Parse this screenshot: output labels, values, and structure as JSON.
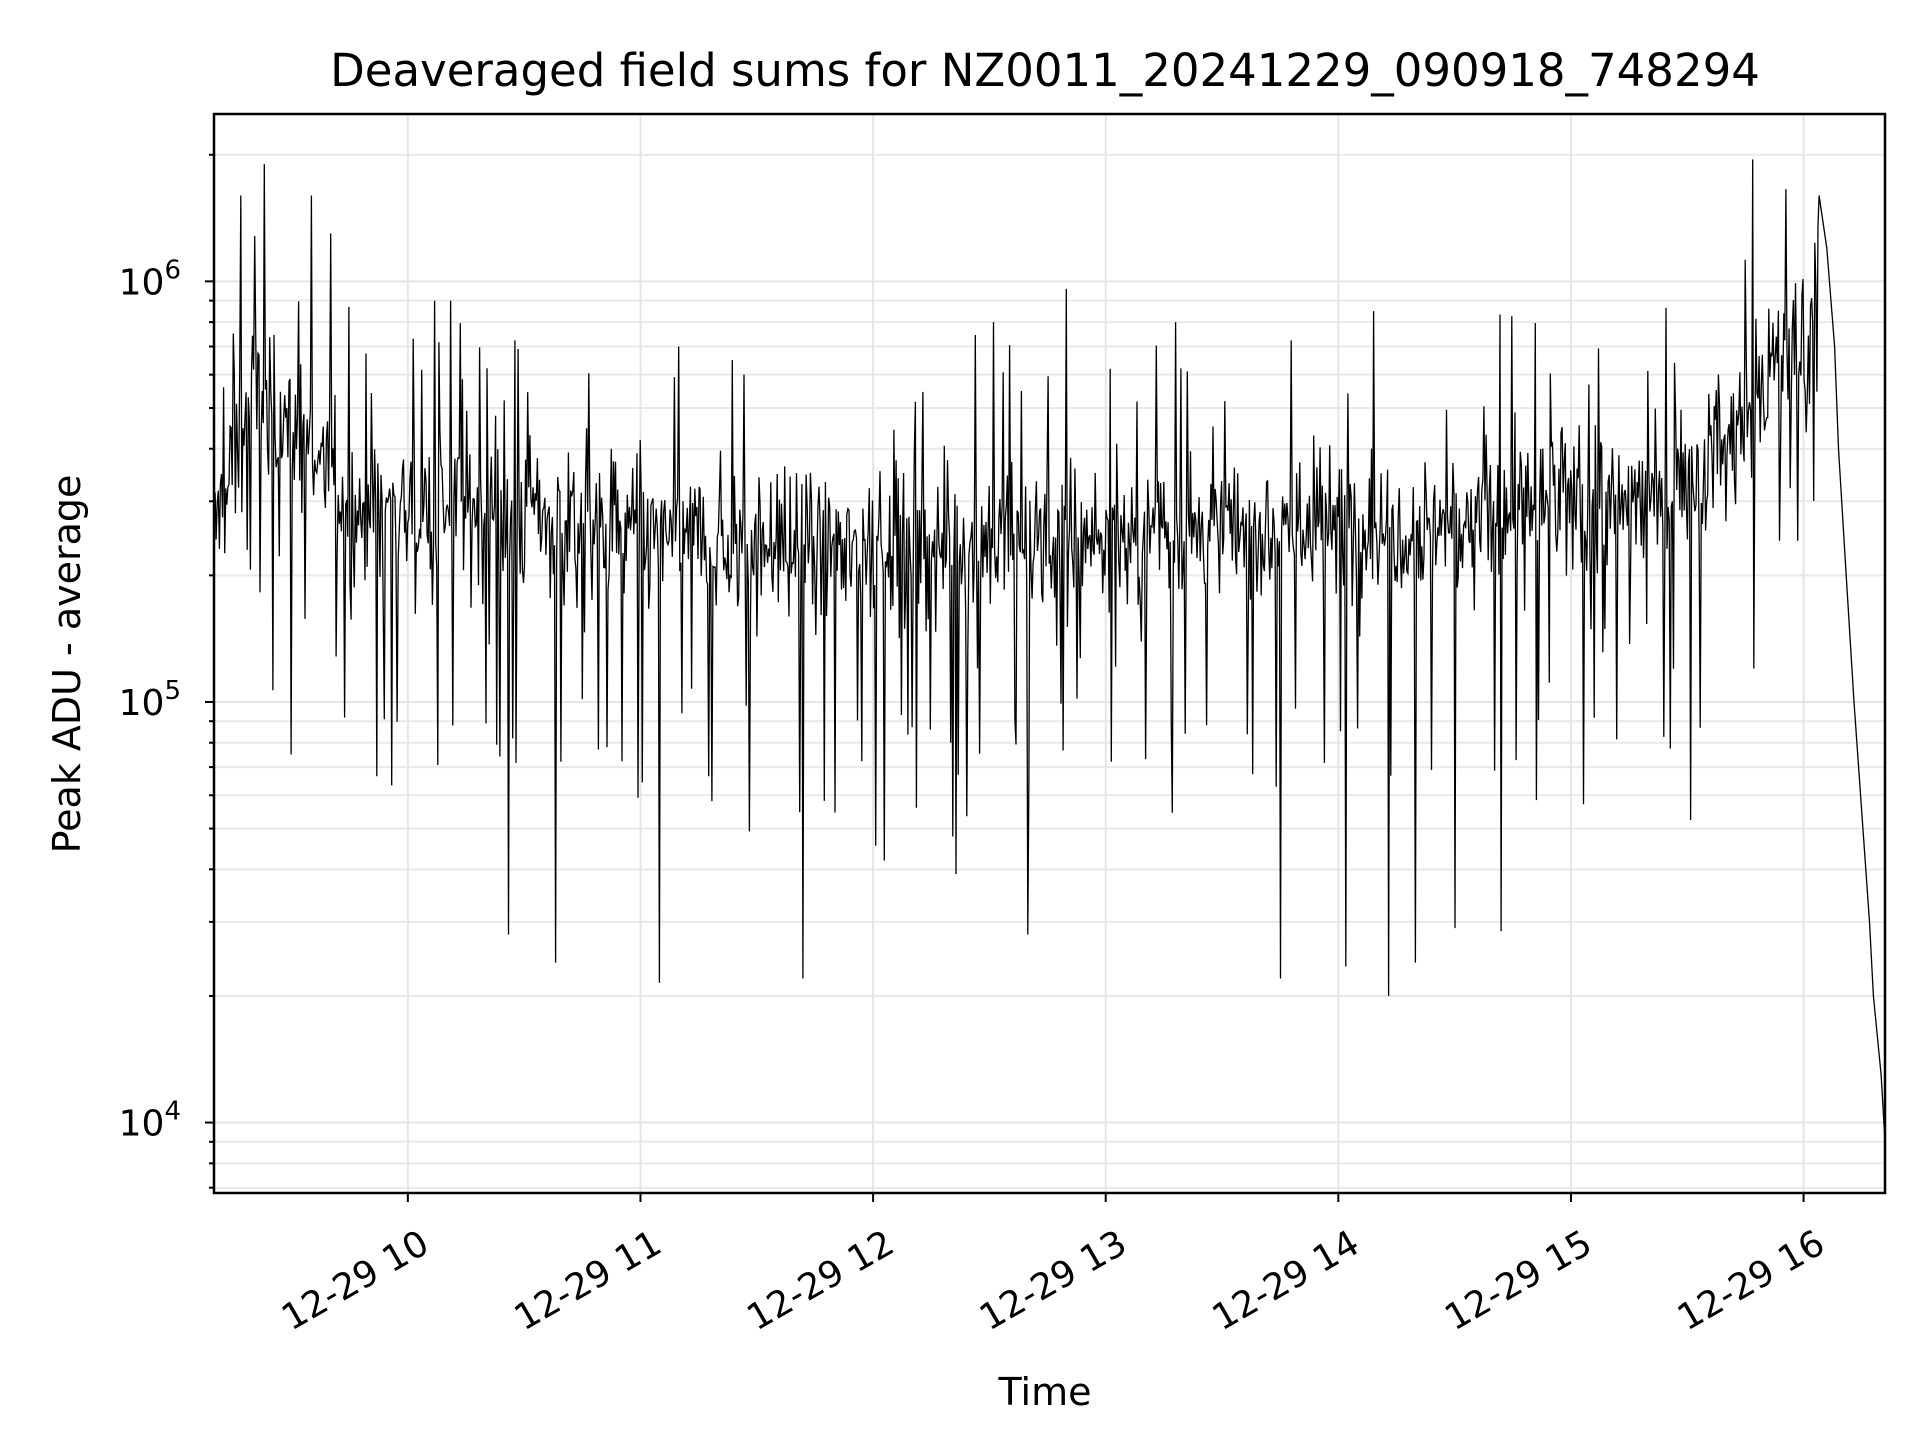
{
  "chart_data": {
    "type": "line",
    "title": "Deaveraged field sums for NZ0011_20241229_090918_748294",
    "xlabel": "Time",
    "ylabel": "Peak ADU - average",
    "yscale": "log",
    "ylim": [
      6800,
      2500000
    ],
    "xlim": [
      "12-29 09:10",
      "12-29 16:21"
    ],
    "grid": true,
    "minor_grid_y": true,
    "legend": "none",
    "line_color": "#000000",
    "x_ticks": [
      {
        "time": "12-29 10:00",
        "label": "12-29 10"
      },
      {
        "time": "12-29 11:00",
        "label": "12-29 11"
      },
      {
        "time": "12-29 12:00",
        "label": "12-29 12"
      },
      {
        "time": "12-29 13:00",
        "label": "12-29 13"
      },
      {
        "time": "12-29 14:00",
        "label": "12-29 14"
      },
      {
        "time": "12-29 15:00",
        "label": "12-29 15"
      },
      {
        "time": "12-29 16:00",
        "label": "12-29 16"
      }
    ],
    "y_ticks": [
      {
        "value": 10000,
        "base": "10",
        "exp": "4"
      },
      {
        "value": 100000,
        "base": "10",
        "exp": "5"
      },
      {
        "value": 1000000,
        "base": "10",
        "exp": "6"
      }
    ],
    "series": [
      {
        "noisy_segment": {
          "start": "12-29 09:10",
          "end": "12-29 16:04",
          "samples": 1500,
          "typical_value_curve": [
            {
              "time": "12-29 09:10",
              "value": 250000
            },
            {
              "time": "12-29 09:20",
              "value": 550000
            },
            {
              "time": "12-29 09:30",
              "value": 450000
            },
            {
              "time": "12-29 09:45",
              "value": 300000
            },
            {
              "time": "12-29 10:30",
              "value": 280000
            },
            {
              "time": "12-29 11:30",
              "value": 230000
            },
            {
              "time": "12-29 12:30",
              "value": 240000
            },
            {
              "time": "12-29 13:30",
              "value": 260000
            },
            {
              "time": "12-29 14:30",
              "value": 270000
            },
            {
              "time": "12-29 15:15",
              "value": 300000
            },
            {
              "time": "12-29 15:40",
              "value": 380000
            },
            {
              "time": "12-29 15:50",
              "value": 600000
            },
            {
              "time": "12-29 16:04",
              "value": 800000
            }
          ],
          "spikes_up": [
            {
              "time": "12-29 09:17",
              "value": 1600000
            },
            {
              "time": "12-29 09:23",
              "value": 1900000
            },
            {
              "time": "12-29 09:35",
              "value": 1600000
            },
            {
              "time": "12-29 09:40",
              "value": 1300000
            },
            {
              "time": "12-29 10:07",
              "value": 900000
            },
            {
              "time": "12-29 10:11",
              "value": 900000
            },
            {
              "time": "12-29 11:10",
              "value": 700000
            },
            {
              "time": "12-29 12:31",
              "value": 800000
            },
            {
              "time": "12-29 13:18",
              "value": 800000
            },
            {
              "time": "12-29 14:09",
              "value": 850000
            },
            {
              "time": "12-29 15:47",
              "value": 1950000
            },
            {
              "time": "12-29 16:04",
              "value": 1600000
            }
          ],
          "dips": [
            {
              "time": "12-29 09:30",
              "value": 75000
            },
            {
              "time": "12-29 10:26",
              "value": 28000
            },
            {
              "time": "12-29 10:38",
              "value": 24000
            },
            {
              "time": "12-29 11:05",
              "value": 21500
            },
            {
              "time": "12-29 11:42",
              "value": 22000
            },
            {
              "time": "12-29 12:40",
              "value": 28000
            },
            {
              "time": "12-29 13:45",
              "value": 22000
            },
            {
              "time": "12-29 14:02",
              "value": 23500
            },
            {
              "time": "12-29 14:13",
              "value": 20000
            },
            {
              "time": "12-29 14:20",
              "value": 24000
            },
            {
              "time": "12-29 14:30",
              "value": 29000
            },
            {
              "time": "12-29 14:42",
              "value": 28500
            }
          ]
        },
        "smooth_segment": [
          {
            "time": "12-29 16:04",
            "value": 1600000
          },
          {
            "time": "12-29 16:06",
            "value": 1200000
          },
          {
            "time": "12-29 16:08",
            "value": 700000
          },
          {
            "time": "12-29 16:09",
            "value": 400000
          },
          {
            "time": "12-29 16:11",
            "value": 200000
          },
          {
            "time": "12-29 16:13",
            "value": 100000
          },
          {
            "time": "12-29 16:15",
            "value": 55000
          },
          {
            "time": "12-29 16:17",
            "value": 30000
          },
          {
            "time": "12-29 16:18",
            "value": 20000
          },
          {
            "time": "12-29 16:20",
            "value": 13000
          },
          {
            "time": "12-29 16:21",
            "value": 9000
          }
        ]
      }
    ]
  }
}
